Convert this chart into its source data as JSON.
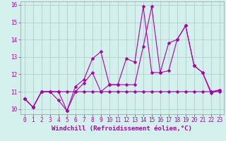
{
  "xlabel": "Windchill (Refroidissement éolien,°C)",
  "background_color": "#d4f0ec",
  "grid_color": "#a8c8c8",
  "line_color": "#aa00aa",
  "xlim": [
    -0.5,
    23.5
  ],
  "ylim": [
    9.7,
    16.2
  ],
  "xticks": [
    0,
    1,
    2,
    3,
    4,
    5,
    6,
    7,
    8,
    9,
    10,
    11,
    12,
    13,
    14,
    15,
    16,
    17,
    18,
    19,
    20,
    21,
    22,
    23
  ],
  "yticks": [
    10,
    11,
    12,
    13,
    14,
    15,
    16
  ],
  "line1_x": [
    0,
    1,
    2,
    3,
    4,
    5,
    6,
    7,
    8,
    9,
    10,
    11,
    12,
    13,
    14,
    15,
    16,
    17,
    18,
    19,
    20,
    21,
    22,
    23
  ],
  "line1_y": [
    10.6,
    10.1,
    11.0,
    11.0,
    11.0,
    11.0,
    11.0,
    11.0,
    11.0,
    11.0,
    11.0,
    11.0,
    11.0,
    11.0,
    11.0,
    11.0,
    11.0,
    11.0,
    11.0,
    11.0,
    11.0,
    11.0,
    11.0,
    11.0
  ],
  "line2_x": [
    0,
    1,
    2,
    3,
    4,
    5,
    6,
    7,
    8,
    9,
    10,
    11,
    12,
    13,
    14,
    15,
    16,
    17,
    18,
    19,
    20,
    21,
    22,
    23
  ],
  "line2_y": [
    10.6,
    10.1,
    11.0,
    11.0,
    11.0,
    9.9,
    11.3,
    11.7,
    12.9,
    13.3,
    11.4,
    11.4,
    12.9,
    12.7,
    15.9,
    12.1,
    12.1,
    12.2,
    14.0,
    14.8,
    12.5,
    12.1,
    11.0,
    11.1
  ],
  "line3_x": [
    0,
    1,
    2,
    3,
    4,
    5,
    6,
    7,
    8,
    9,
    10,
    11,
    12,
    13,
    14,
    15,
    16,
    17,
    18,
    19,
    20,
    21,
    22,
    23
  ],
  "line3_y": [
    10.6,
    10.1,
    11.0,
    11.0,
    10.5,
    9.9,
    11.0,
    11.5,
    12.1,
    11.0,
    11.4,
    11.4,
    11.4,
    11.4,
    13.6,
    15.9,
    12.1,
    13.8,
    14.0,
    14.8,
    12.5,
    12.1,
    10.9,
    11.1
  ],
  "marker": "D",
  "markersize": 2.5,
  "linewidth": 0.8,
  "tick_fontsize": 5.5,
  "xlabel_fontsize": 6.5
}
